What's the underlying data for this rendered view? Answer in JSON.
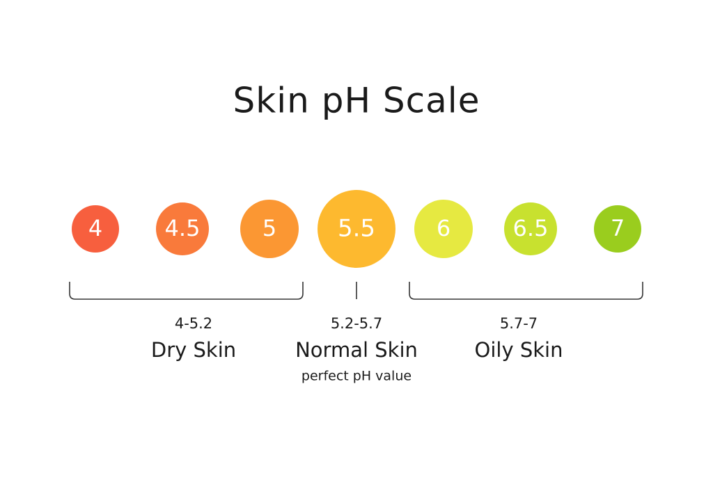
{
  "title": "Skin pH Scale",
  "scale": [
    {
      "label": "4",
      "color": "#f75f3e"
    },
    {
      "label": "4.5",
      "color": "#f97a3b"
    },
    {
      "label": "5",
      "color": "#fb9733"
    },
    {
      "label": "5.5",
      "color": "#fdb92f"
    },
    {
      "label": "6",
      "color": "#e6e941"
    },
    {
      "label": "6.5",
      "color": "#c8e12f"
    },
    {
      "label": "7",
      "color": "#9acd1e"
    }
  ],
  "groups": [
    {
      "range": "4-5.2",
      "name": "Dry Skin"
    },
    {
      "range": "5.2-5.7",
      "name": "Normal Skin",
      "note": "perfect pH value"
    },
    {
      "range": "5.7-7",
      "name": "Oily Skin"
    }
  ]
}
